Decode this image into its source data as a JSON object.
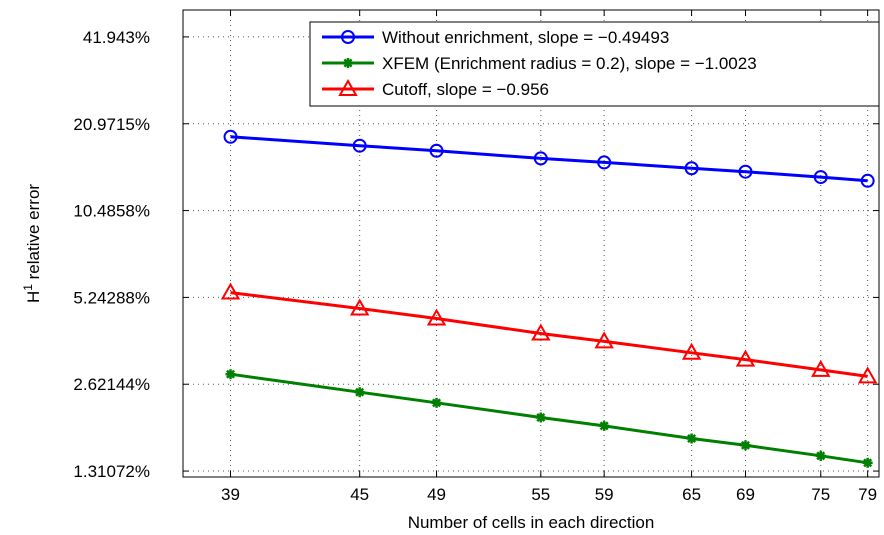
{
  "chart_data": {
    "type": "line",
    "xlabel": "Number of cells in each direction",
    "ylabel_base": "H",
    "ylabel_superscript": "1",
    "ylabel_rest": " relative error",
    "x_scale": "log",
    "y_scale": "log",
    "xlim": [
      37,
      80
    ],
    "ylim": [
      1.25,
      52
    ],
    "x_ticks": [
      39,
      45,
      49,
      55,
      59,
      65,
      69,
      75,
      79
    ],
    "x_tick_labels": [
      "39",
      "45",
      "49",
      "55",
      "59",
      "65",
      "69",
      "75",
      "79"
    ],
    "y_ticks": [
      1.31072,
      2.62144,
      5.24288,
      10.4858,
      20.9715,
      41.943
    ],
    "y_tick_labels": [
      "1.31072%",
      "2.62144%",
      "5.24288%",
      "10.4858%",
      "20.9715%",
      "41.943%"
    ],
    "grid": true,
    "legend_position": "top-right",
    "x": [
      39,
      45,
      49,
      55,
      59,
      65,
      69,
      75,
      79
    ],
    "series": [
      {
        "name": "Without enrichment, slope = −0.49493",
        "color": "#0000ff",
        "marker": "circle",
        "values": [
          18.9,
          17.6,
          16.9,
          15.9,
          15.4,
          14.7,
          14.3,
          13.7,
          13.3
        ]
      },
      {
        "name": "XFEM (Enrichment radius = 0.2), slope = −1.0023",
        "color": "#008000",
        "marker": "asterisk",
        "values": [
          2.84,
          2.46,
          2.26,
          2.01,
          1.88,
          1.7,
          1.61,
          1.48,
          1.4
        ]
      },
      {
        "name": "Cutoff, slope = −0.956",
        "color": "#ff0000",
        "marker": "triangle",
        "values": [
          5.45,
          4.8,
          4.43,
          3.93,
          3.69,
          3.37,
          3.19,
          2.94,
          2.79
        ]
      }
    ]
  }
}
